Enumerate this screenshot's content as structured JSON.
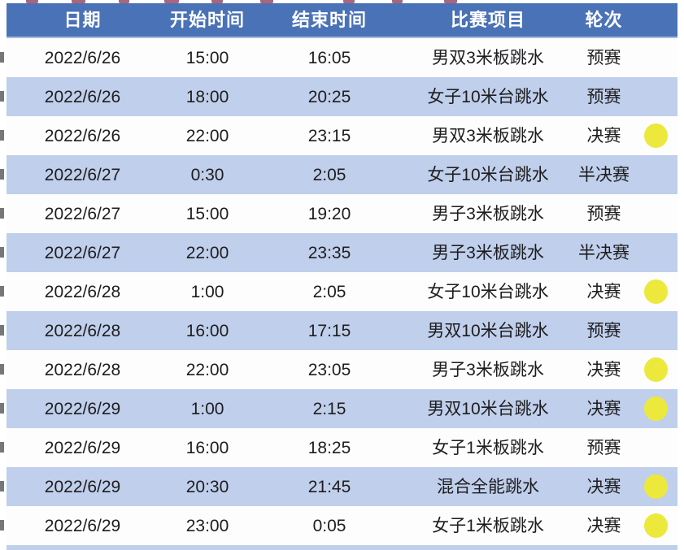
{
  "chart_data": {
    "type": "table",
    "columns": [
      "日期",
      "开始时间",
      "结束时间",
      "比赛项目",
      "轮次"
    ],
    "medal_dot_meaning": "决赛场次标记（黄色圆点）",
    "rows": [
      {
        "date": "2022/6/26",
        "start": "15:00",
        "end": "16:05",
        "event": "男双3米板跳水",
        "round": "预赛",
        "medal": false
      },
      {
        "date": "2022/6/26",
        "start": "18:00",
        "end": "20:25",
        "event": "女子10米台跳水",
        "round": "预赛",
        "medal": false
      },
      {
        "date": "2022/6/26",
        "start": "22:00",
        "end": "23:15",
        "event": "男双3米板跳水",
        "round": "决赛",
        "medal": true
      },
      {
        "date": "2022/6/27",
        "start": "0:30",
        "end": "2:05",
        "event": "女子10米台跳水",
        "round": "半决赛",
        "medal": false
      },
      {
        "date": "2022/6/27",
        "start": "15:00",
        "end": "19:20",
        "event": "男子3米板跳水",
        "round": "预赛",
        "medal": false
      },
      {
        "date": "2022/6/27",
        "start": "22:00",
        "end": "23:35",
        "event": "男子3米板跳水",
        "round": "半决赛",
        "medal": false
      },
      {
        "date": "2022/6/28",
        "start": "1:00",
        "end": "2:05",
        "event": "女子10米台跳水",
        "round": "决赛",
        "medal": true
      },
      {
        "date": "2022/6/28",
        "start": "16:00",
        "end": "17:15",
        "event": "男双10米台跳水",
        "round": "预赛",
        "medal": false
      },
      {
        "date": "2022/6/28",
        "start": "22:00",
        "end": "23:05",
        "event": "男子3米板跳水",
        "round": "决赛",
        "medal": true
      },
      {
        "date": "2022/6/29",
        "start": "1:00",
        "end": "2:15",
        "event": "男双10米台跳水",
        "round": "决赛",
        "medal": true
      },
      {
        "date": "2022/6/29",
        "start": "16:00",
        "end": "18:25",
        "event": "女子1米板跳水",
        "round": "预赛",
        "medal": false
      },
      {
        "date": "2022/6/29",
        "start": "20:30",
        "end": "21:45",
        "event": "混合全能跳水",
        "round": "决赛",
        "medal": true
      },
      {
        "date": "2022/6/29",
        "start": "23:00",
        "end": "0:05",
        "event": "女子1米板跳水",
        "round": "决赛",
        "medal": true
      }
    ]
  },
  "colors": {
    "header_bg": "#4a72b7",
    "header_text": "#ffffff",
    "row_bg": "#fdfdfe",
    "row_alt_bg": "#c0cfeb",
    "body_text": "#1d1d1f",
    "medal_yellow": "#ece93c",
    "top_fragment_red": "#9a4a63"
  }
}
